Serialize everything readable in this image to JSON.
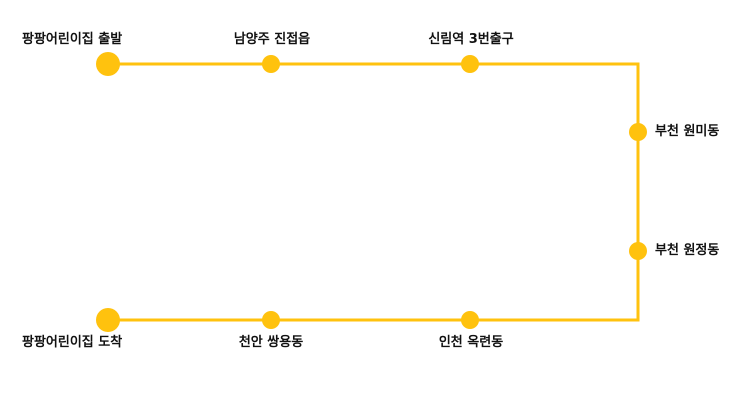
{
  "route": {
    "color": "#FFC20E",
    "stops": [
      {
        "id": "start",
        "label": "팡팡어린이집 출발",
        "type": "terminal"
      },
      {
        "id": "namyangju",
        "label": "남양주 진접읍",
        "type": "stop"
      },
      {
        "id": "sillim",
        "label": "신림역 3번출구",
        "type": "stop"
      },
      {
        "id": "bucheon-wonmi",
        "label": "부천 원미동",
        "type": "stop"
      },
      {
        "id": "bucheon-wonjeong",
        "label": "부천 원정동",
        "type": "stop"
      },
      {
        "id": "incheon",
        "label": "인천 옥련동",
        "type": "stop"
      },
      {
        "id": "cheonan",
        "label": "천안 쌍용동",
        "type": "stop"
      },
      {
        "id": "end",
        "label": "팡팡어린이집 도착",
        "type": "terminal"
      }
    ]
  }
}
